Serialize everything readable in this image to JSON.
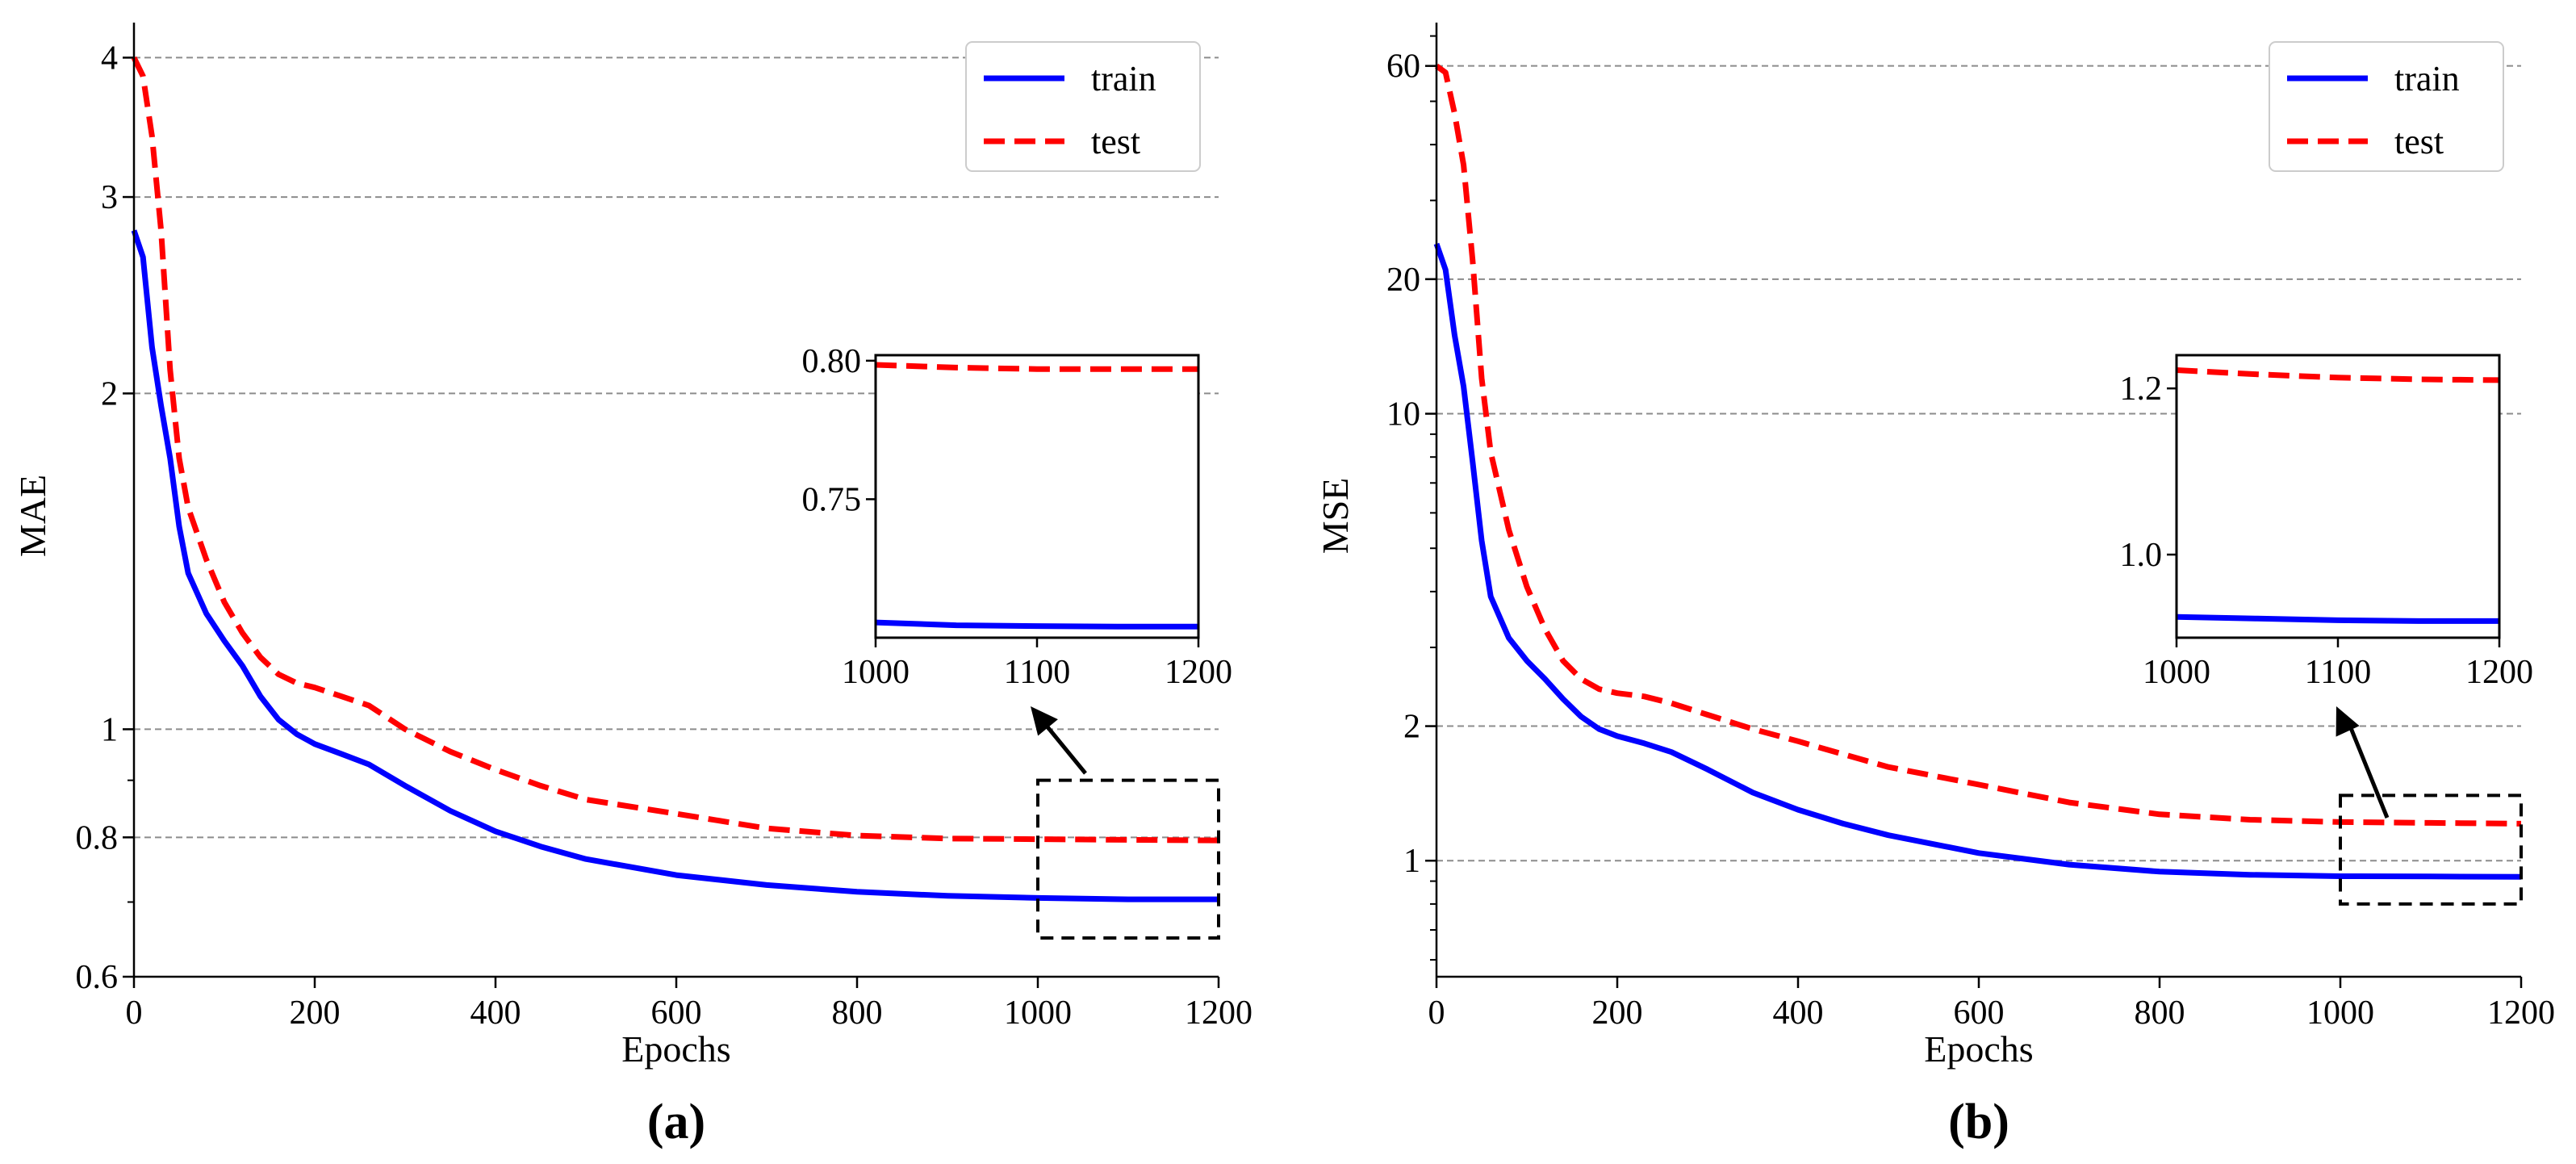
{
  "chart_data": [
    {
      "panel": "(a)",
      "type": "line",
      "xlabel": "Epochs",
      "ylabel": "MAE",
      "yscale": "log",
      "xlim": [
        0,
        1200
      ],
      "ylim": [
        0.6,
        4.3
      ],
      "x_ticks": [
        0,
        200,
        400,
        600,
        800,
        1000,
        1200
      ],
      "x_tick_labels": [
        "0",
        "200",
        "400",
        "600",
        "800",
        "1000",
        "1200"
      ],
      "y_ticks": [
        0.6,
        0.8,
        1,
        2,
        3,
        4
      ],
      "y_tick_labels": [
        "0.6",
        "0.8",
        "1",
        "2",
        "3",
        "4"
      ],
      "grid": "y-dashed",
      "legend": "top-right",
      "series": [
        {
          "name": "train",
          "color": "#0000ff",
          "style": "solid",
          "x": [
            0,
            10,
            20,
            30,
            40,
            50,
            60,
            80,
            100,
            120,
            140,
            160,
            180,
            200,
            230,
            260,
            300,
            350,
            400,
            450,
            500,
            600,
            700,
            800,
            900,
            1000,
            1100,
            1200
          ],
          "y": [
            2.8,
            2.65,
            2.2,
            1.95,
            1.75,
            1.52,
            1.38,
            1.27,
            1.2,
            1.14,
            1.07,
            1.02,
            0.99,
            0.97,
            0.95,
            0.93,
            0.89,
            0.845,
            0.81,
            0.785,
            0.765,
            0.74,
            0.725,
            0.715,
            0.709,
            0.706,
            0.704,
            0.704
          ]
        },
        {
          "name": "test",
          "color": "#ff0000",
          "style": "dashed",
          "x": [
            0,
            10,
            20,
            30,
            40,
            50,
            60,
            80,
            100,
            120,
            140,
            160,
            180,
            200,
            230,
            260,
            300,
            350,
            400,
            450,
            500,
            600,
            700,
            800,
            900,
            1000,
            1100,
            1200
          ],
          "y": [
            4.0,
            3.85,
            3.4,
            2.8,
            2.1,
            1.75,
            1.58,
            1.42,
            1.3,
            1.22,
            1.16,
            1.12,
            1.1,
            1.09,
            1.07,
            1.05,
            1.0,
            0.955,
            0.92,
            0.89,
            0.865,
            0.84,
            0.815,
            0.803,
            0.798,
            0.797,
            0.796,
            0.795
          ]
        }
      ],
      "inset": {
        "xlim": [
          1000,
          1200
        ],
        "ylim": [
          0.7,
          0.802
        ],
        "x_tick_labels": [
          "1000",
          "1100",
          "1200"
        ],
        "y_ticks": [
          0.75,
          0.8
        ],
        "y_tick_labels": [
          "0.75",
          "0.80"
        ],
        "series": [
          {
            "name": "train",
            "x": [
              1000,
              1050,
              1100,
              1150,
              1200
            ],
            "y": [
              0.7055,
              0.7045,
              0.7042,
              0.704,
              0.704
            ]
          },
          {
            "name": "test",
            "x": [
              1000,
              1050,
              1100,
              1150,
              1200
            ],
            "y": [
              0.7985,
              0.7975,
              0.797,
              0.797,
              0.797
            ]
          }
        ],
        "zoom_box": {
          "x": [
            1000,
            1200
          ],
          "y": [
            0.65,
            0.9
          ]
        }
      }
    },
    {
      "panel": "(b)",
      "type": "line",
      "xlabel": "Epochs",
      "ylabel": "MSE",
      "yscale": "log",
      "xlim": [
        0,
        1200
      ],
      "ylim": [
        0.55,
        75
      ],
      "x_ticks": [
        0,
        200,
        400,
        600,
        800,
        1000,
        1200
      ],
      "x_tick_labels": [
        "0",
        "200",
        "400",
        "600",
        "800",
        "1000",
        "1200"
      ],
      "y_ticks": [
        1,
        2,
        10,
        20,
        60
      ],
      "y_tick_labels": [
        "1",
        "2",
        "10",
        "20",
        "60"
      ],
      "grid": "y-dashed",
      "legend": "top-right",
      "series": [
        {
          "name": "train",
          "color": "#0000ff",
          "style": "solid",
          "x": [
            0,
            10,
            20,
            30,
            40,
            50,
            60,
            80,
            100,
            120,
            140,
            160,
            180,
            200,
            230,
            260,
            300,
            350,
            400,
            450,
            500,
            600,
            700,
            800,
            900,
            1000,
            1100,
            1200
          ],
          "y": [
            24,
            21,
            15,
            11.5,
            7.8,
            5.2,
            3.9,
            3.15,
            2.8,
            2.55,
            2.3,
            2.1,
            1.97,
            1.9,
            1.83,
            1.75,
            1.6,
            1.42,
            1.3,
            1.21,
            1.14,
            1.04,
            0.98,
            0.945,
            0.93,
            0.923,
            0.922,
            0.92
          ]
        },
        {
          "name": "test",
          "color": "#ff0000",
          "style": "dashed",
          "x": [
            0,
            10,
            20,
            30,
            40,
            50,
            60,
            80,
            100,
            120,
            140,
            160,
            180,
            200,
            230,
            260,
            300,
            350,
            400,
            450,
            500,
            600,
            700,
            800,
            900,
            1000,
            1100,
            1200
          ],
          "y": [
            60,
            58,
            47,
            36,
            22,
            12,
            8.2,
            5.5,
            4.1,
            3.3,
            2.8,
            2.55,
            2.42,
            2.37,
            2.33,
            2.25,
            2.12,
            1.97,
            1.85,
            1.73,
            1.62,
            1.48,
            1.35,
            1.27,
            1.235,
            1.22,
            1.215,
            1.21
          ]
        }
      ],
      "inset": {
        "xlim": [
          1000,
          1200
        ],
        "ylim": [
          0.9,
          1.24
        ],
        "x_tick_labels": [
          "1000",
          "1100",
          "1200"
        ],
        "y_ticks": [
          1.0,
          1.2
        ],
        "y_tick_labels": [
          "1.0",
          "1.2"
        ],
        "series": [
          {
            "name": "train",
            "x": [
              1000,
              1050,
              1100,
              1150,
              1200
            ],
            "y": [
              0.925,
              0.923,
              0.921,
              0.92,
              0.92
            ]
          },
          {
            "name": "test",
            "x": [
              1000,
              1050,
              1100,
              1150,
              1200
            ],
            "y": [
              1.222,
              1.217,
              1.213,
              1.211,
              1.21
            ]
          }
        ],
        "zoom_box": {
          "x": [
            1000,
            1200
          ],
          "y": [
            0.8,
            1.4
          ]
        }
      }
    }
  ]
}
